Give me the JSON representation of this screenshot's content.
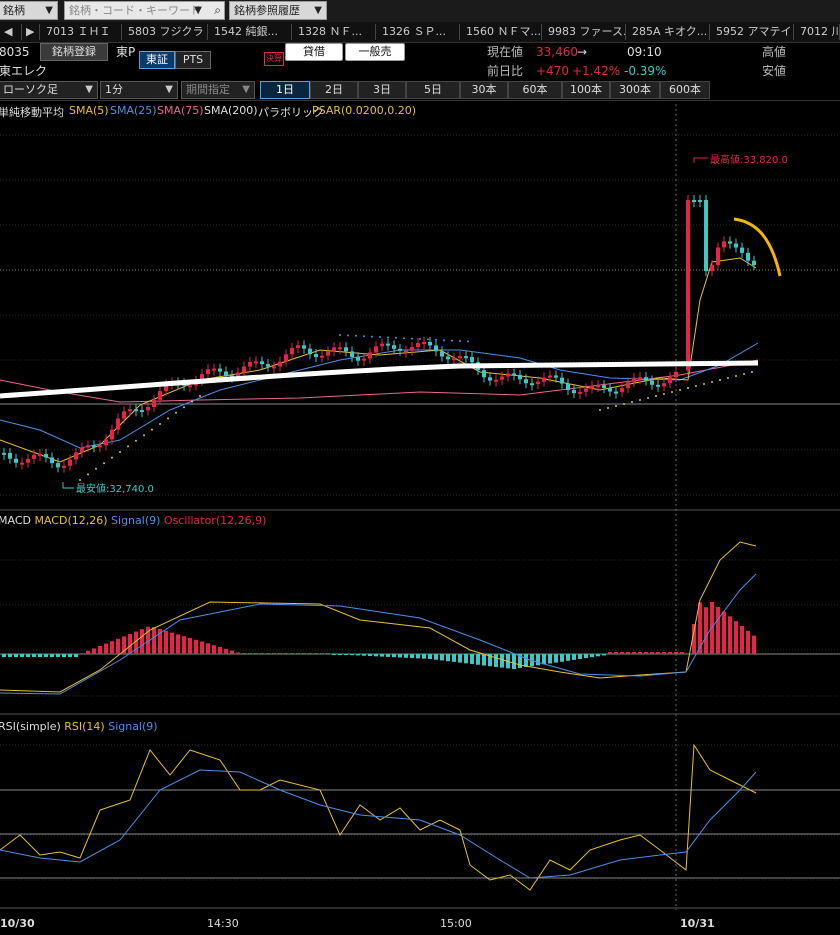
{
  "topbar": {
    "market_select": "銘柄",
    "search_placeholder": "銘柄・コード・キーワード",
    "history_select": "銘柄参照履歴"
  },
  "watch_tabs": [
    "7013 ＩＨＩ",
    "5803 フジクラ",
    "1542 純銀...",
    "1328 ＮＦ...",
    "1326 ＳＰ...",
    "1560 ＮＦマ...",
    "9983 ファース...",
    "285A キオク...",
    "5952 アマテイ",
    "7012 川"
  ],
  "stock": {
    "code": "8035",
    "name": "東エレク",
    "register_button": "銘柄登録",
    "market_label": "東P",
    "exchange_tab_1": "東証",
    "exchange_tab_2": "PTS",
    "settle_badge": "決算",
    "lending_button": "貸借",
    "general_button": "一般売",
    "current_price_label": "現在値",
    "current_price": "33,460",
    "current_arrow": "→",
    "time": "09:10",
    "high_label": "高値",
    "change_label": "前日比",
    "change": "+470",
    "change_pct": "+1.42%",
    "change_other": "-0.39%",
    "low_label": "安値"
  },
  "toolbar": {
    "chart_type": "ローソク足",
    "interval": "1分",
    "period_select": "期間指定",
    "periods": [
      "1日",
      "2日",
      "3日",
      "5日",
      "30本",
      "60本",
      "100本",
      "300本",
      "600本"
    ],
    "active_period": "1日"
  },
  "main_legend": [
    {
      "text": "単純移動平均",
      "color": "#dddddd"
    },
    {
      "text": "SMA(5)",
      "color": "#e6c229"
    },
    {
      "text": "SMA(25)",
      "color": "#4a8fe8"
    },
    {
      "text": "SMA(75)",
      "color": "#f06292"
    },
    {
      "text": "SMA(200)",
      "color": "#dddddd"
    },
    {
      "text": "パラボリック",
      "color": "#dddddd"
    },
    {
      "text": "PSAR(0.0200,0.20)",
      "color": "#e6c229"
    }
  ],
  "annotations": {
    "high_value": "最高値:33,820.0",
    "low_value": "最安値:32,740.0"
  },
  "macd_legend": [
    {
      "text": "MACD",
      "color": "#dddddd"
    },
    {
      "text": "MACD(12,26)",
      "color": "#e6c229"
    },
    {
      "text": "Signal(9)",
      "color": "#4a8fe8"
    },
    {
      "text": "Oscillator(12,26,9)",
      "color": "#e8234a"
    }
  ],
  "rsi_legend": [
    {
      "text": "RSI(simple)",
      "color": "#dddddd"
    },
    {
      "text": "RSI(14)",
      "color": "#e6c229"
    },
    {
      "text": "Signal(9)",
      "color": "#4a8fe8"
    }
  ],
  "x_axis": [
    "10/30",
    "14:30",
    "15:00",
    "10/31"
  ],
  "colors": {
    "up": "#e8234a",
    "down": "#3cc8c8",
    "sma5": "#e6c229",
    "sma25": "#4a8fe8",
    "sma75": "#f06292",
    "white": "#ffffff"
  }
}
